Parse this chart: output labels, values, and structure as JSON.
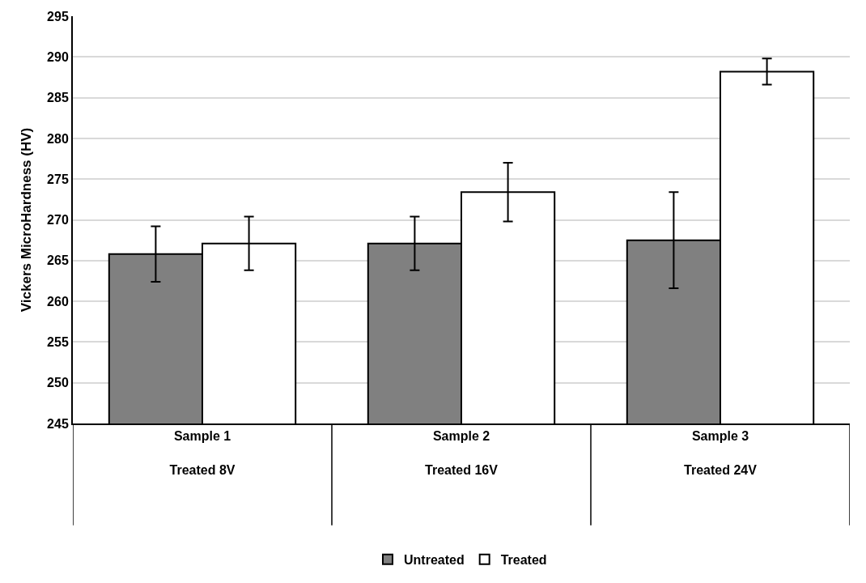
{
  "chart_data": {
    "type": "bar",
    "ylabel": "Vickers MicroHardness (HV)",
    "categories": [
      "Sample 1\nTreated 8V",
      "Sample 2\nTreated 16V",
      "Sample 3\nTreated 24V"
    ],
    "series": [
      {
        "name": "Untreated",
        "color": "#808080",
        "values": [
          265.8,
          267.1,
          267.5
        ],
        "errors": [
          3.4,
          3.3,
          5.9
        ]
      },
      {
        "name": "Treated",
        "color": "#ffffff",
        "values": [
          267.1,
          273.4,
          288.2
        ],
        "errors": [
          3.3,
          3.6,
          1.6
        ]
      }
    ],
    "ylim": [
      245,
      295
    ],
    "yticks": [
      245,
      250,
      255,
      260,
      265,
      270,
      275,
      280,
      285,
      290,
      295
    ],
    "grid": "y",
    "legend": "bottom"
  }
}
